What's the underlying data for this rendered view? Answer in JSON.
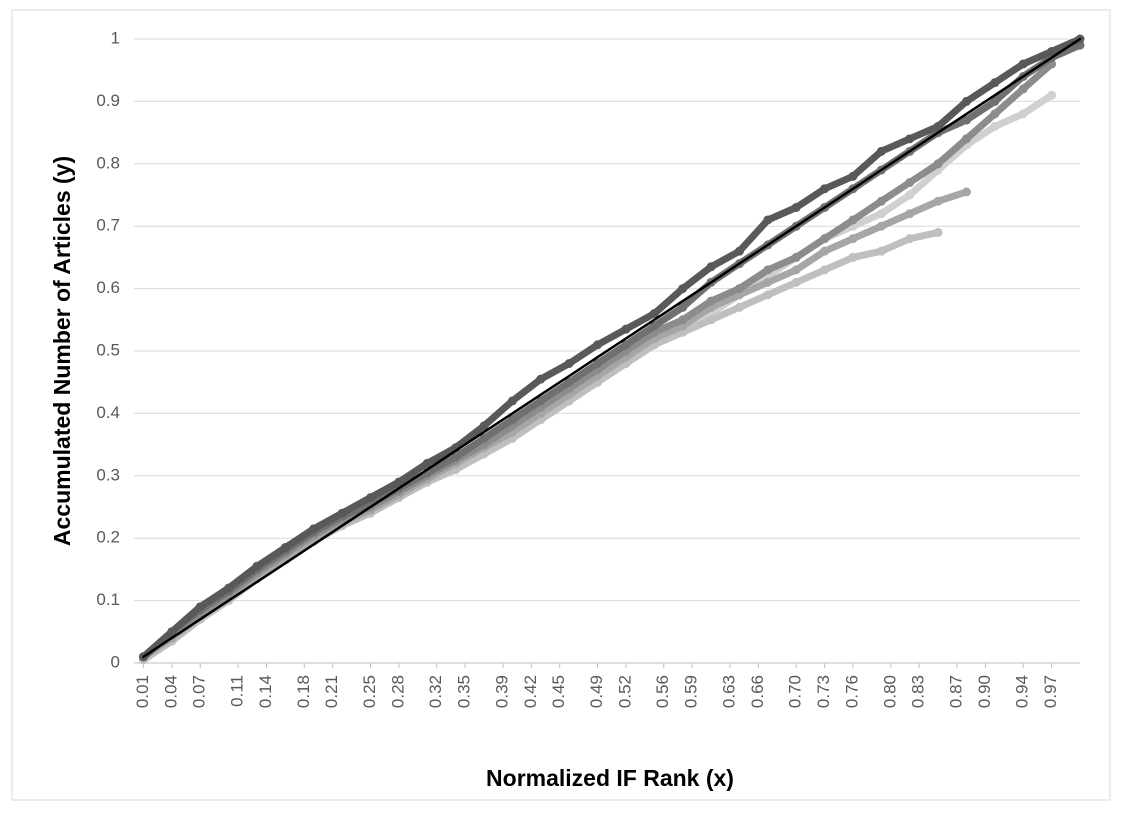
{
  "chart_data": {
    "type": "scatter",
    "x_label": "Normalized IF Rank (x)",
    "y_label": "Accumulated Number of Articles (y)",
    "x": [
      0.01,
      0.04,
      0.07,
      0.1,
      0.13,
      0.16,
      0.19,
      0.22,
      0.25,
      0.28,
      0.31,
      0.34,
      0.37,
      0.4,
      0.43,
      0.46,
      0.49,
      0.52,
      0.55,
      0.58,
      0.61,
      0.64,
      0.67,
      0.7,
      0.73,
      0.76,
      0.79,
      0.82,
      0.85,
      0.88,
      0.91,
      0.94,
      0.97,
      1.0
    ],
    "series": [
      {
        "color": "#d0d0d0",
        "values": [
          0.005,
          0.04,
          0.075,
          0.105,
          0.14,
          0.17,
          0.2,
          0.225,
          0.245,
          0.27,
          0.29,
          0.315,
          0.34,
          0.365,
          0.39,
          0.42,
          0.45,
          0.48,
          0.51,
          0.54,
          0.56,
          0.59,
          0.62,
          0.65,
          0.68,
          0.7,
          0.72,
          0.75,
          0.79,
          0.83,
          0.86,
          0.88,
          0.91,
          null
        ]
      },
      {
        "color": "#bfbfbf",
        "values": [
          0.005,
          0.035,
          0.07,
          0.1,
          0.135,
          0.165,
          0.195,
          0.22,
          0.24,
          0.265,
          0.29,
          0.31,
          0.335,
          0.36,
          0.39,
          0.42,
          0.45,
          0.48,
          0.51,
          0.53,
          0.55,
          0.57,
          0.59,
          0.61,
          0.63,
          0.65,
          0.66,
          0.68,
          0.69,
          null,
          null,
          null,
          null,
          null
        ]
      },
      {
        "color": "#a6a6a6",
        "values": [
          0.01,
          0.04,
          0.075,
          0.105,
          0.14,
          0.17,
          0.2,
          0.225,
          0.245,
          0.27,
          0.295,
          0.32,
          0.345,
          0.37,
          0.4,
          0.43,
          0.46,
          0.49,
          0.52,
          0.54,
          0.57,
          0.59,
          0.61,
          0.63,
          0.66,
          0.68,
          0.7,
          0.72,
          0.74,
          0.755,
          null,
          null,
          null,
          null
        ]
      },
      {
        "color": "#8c8c8c",
        "values": [
          0.01,
          0.045,
          0.08,
          0.11,
          0.145,
          0.175,
          0.205,
          0.23,
          0.25,
          0.275,
          0.3,
          0.325,
          0.35,
          0.38,
          0.41,
          0.44,
          0.47,
          0.5,
          0.53,
          0.55,
          0.58,
          0.6,
          0.63,
          0.65,
          0.68,
          0.71,
          0.74,
          0.77,
          0.8,
          0.84,
          0.88,
          0.92,
          0.96,
          null
        ]
      },
      {
        "color": "#707070",
        "values": [
          0.01,
          0.05,
          0.085,
          0.115,
          0.15,
          0.18,
          0.21,
          0.235,
          0.255,
          0.28,
          0.305,
          0.33,
          0.36,
          0.39,
          0.42,
          0.45,
          0.48,
          0.51,
          0.54,
          0.57,
          0.61,
          0.64,
          0.67,
          0.7,
          0.73,
          0.76,
          0.79,
          0.82,
          0.85,
          0.87,
          0.9,
          0.94,
          0.97,
          0.99
        ]
      },
      {
        "color": "#595959",
        "values": [
          0.01,
          0.05,
          0.09,
          0.12,
          0.155,
          0.185,
          0.215,
          0.24,
          0.265,
          0.29,
          0.32,
          0.345,
          0.38,
          0.42,
          0.455,
          0.48,
          0.51,
          0.535,
          0.56,
          0.6,
          0.635,
          0.66,
          0.71,
          0.73,
          0.76,
          0.78,
          0.82,
          0.84,
          0.86,
          0.9,
          0.93,
          0.96,
          0.98,
          1.0
        ]
      },
      {
        "color": "#000000",
        "mode": "line",
        "values": [
          0.01,
          0.04,
          0.07,
          0.1,
          0.13,
          0.16,
          0.19,
          0.22,
          0.25,
          0.28,
          0.31,
          0.34,
          0.37,
          0.4,
          0.43,
          0.46,
          0.49,
          0.52,
          0.55,
          0.58,
          0.61,
          0.64,
          0.67,
          0.7,
          0.73,
          0.76,
          0.79,
          0.82,
          0.85,
          0.88,
          0.91,
          0.94,
          0.97,
          1.0
        ]
      }
    ],
    "xlim": [
      0,
      1
    ],
    "xticks": [
      0.01,
      0.04,
      0.07,
      0.11,
      0.14,
      0.18,
      0.21,
      0.25,
      0.28,
      0.32,
      0.35,
      0.39,
      0.42,
      0.45,
      0.49,
      0.52,
      0.56,
      0.59,
      0.63,
      0.66,
      {
        "value": 0.7,
        "label": "0.70"
      },
      0.73,
      0.76,
      {
        "value": 0.8,
        "label": "0.80"
      },
      0.83,
      0.87,
      {
        "value": 0.9,
        "label": "0.90"
      },
      0.94,
      0.97
    ],
    "ylim": [
      0,
      1
    ],
    "yticks": [
      0,
      0.1,
      0.2,
      0.3,
      0.4,
      0.5,
      0.6,
      0.7,
      0.8,
      0.9,
      1
    ],
    "grid": true
  }
}
